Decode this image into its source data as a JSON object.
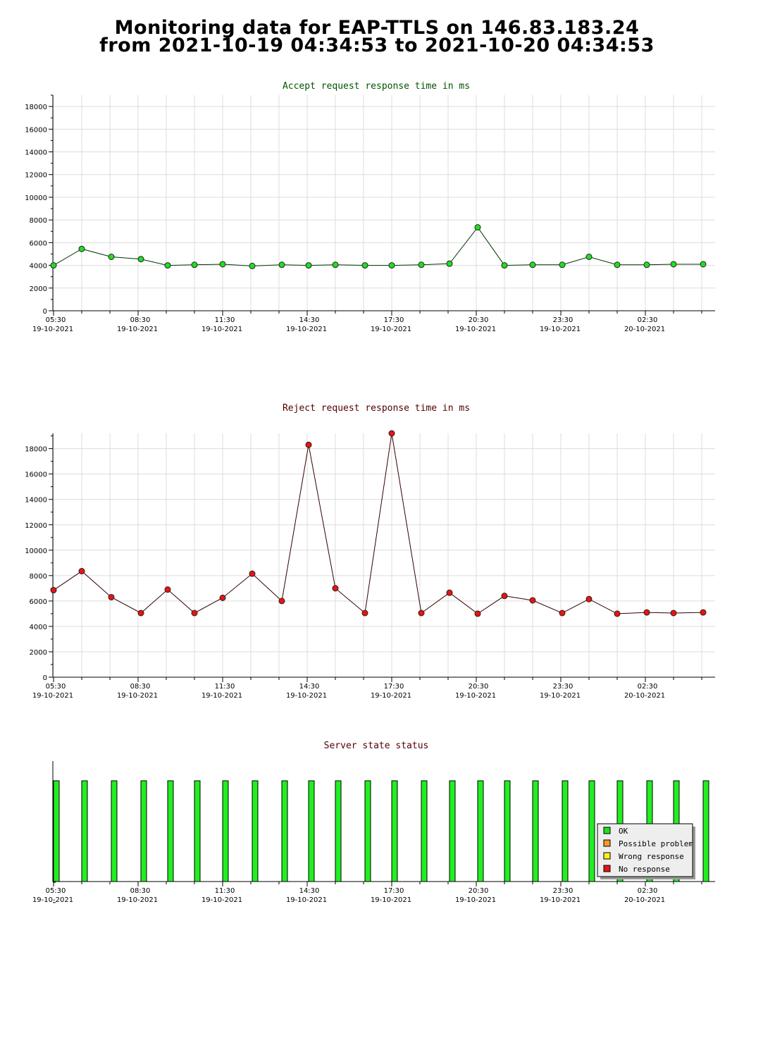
{
  "page": {
    "title_line1": "Monitoring data for EAP-TTLS on 146.83.183.24",
    "title_line2": "from 2021-10-19 04:34:53 to 2021-10-20 04:34:53"
  },
  "x_ticks": [
    {
      "time": "05:30",
      "date": "19-10-2021",
      "hour": 0
    },
    {
      "time": "08:30",
      "date": "19-10-2021",
      "hour": 3
    },
    {
      "time": "11:30",
      "date": "19-10-2021",
      "hour": 6
    },
    {
      "time": "14:30",
      "date": "19-10-2021",
      "hour": 9
    },
    {
      "time": "17:30",
      "date": "19-10-2021",
      "hour": 12
    },
    {
      "time": "20:30",
      "date": "19-10-2021",
      "hour": 15
    },
    {
      "time": "23:30",
      "date": "19-10-2021",
      "hour": 18
    },
    {
      "time": "02:30",
      "date": "20-10-2021",
      "hour": 21
    }
  ],
  "chart_data": [
    {
      "id": "accept",
      "type": "line",
      "title": "Accept request response time in ms",
      "title_color": "#005500",
      "line_color": "#003300",
      "marker_color": "#22dd22",
      "ylim": [
        0,
        19000
      ],
      "yticks": [
        0,
        2000,
        4000,
        6000,
        8000,
        10000,
        12000,
        14000,
        16000,
        18000
      ],
      "x": [
        0,
        1,
        2.05,
        3.1,
        4.05,
        5,
        6,
        7.05,
        8.1,
        9.05,
        10,
        11.05,
        12,
        13.05,
        14.05,
        15.05,
        16,
        17,
        18.05,
        19,
        20,
        21.05,
        22,
        23.05
      ],
      "values": [
        4000,
        5450,
        4750,
        4550,
        4000,
        4050,
        4100,
        3950,
        4050,
        4000,
        4050,
        4000,
        4000,
        4050,
        4150,
        7350,
        4000,
        4050,
        4050,
        4750,
        4050,
        4050,
        4100,
        4100
      ]
    },
    {
      "id": "reject",
      "type": "line",
      "title": "Reject request response time in ms",
      "title_color": "#550000",
      "line_color": "#330000",
      "marker_color": "#ee1111",
      "ylim": [
        0,
        19200
      ],
      "yticks": [
        0,
        2000,
        4000,
        6000,
        8000,
        10000,
        12000,
        14000,
        16000,
        18000
      ],
      "x": [
        0,
        1,
        2.05,
        3.1,
        4.05,
        5,
        6,
        7.05,
        8.1,
        9.05,
        10,
        11.05,
        12,
        13.05,
        14.05,
        15.05,
        16,
        17,
        18.05,
        19,
        20,
        21.05,
        22,
        23.05
      ],
      "values": [
        6850,
        8350,
        6300,
        5050,
        6900,
        5050,
        6250,
        8150,
        6000,
        18300,
        7000,
        5050,
        19200,
        5050,
        6650,
        5000,
        6400,
        6050,
        5050,
        6150,
        5000,
        5100,
        5050,
        5100
      ]
    },
    {
      "id": "status",
      "type": "bar",
      "title": "Server state status",
      "title_color": "#550000",
      "bar_color": "#22ee22",
      "x": [
        0,
        1,
        2.05,
        3.1,
        4.05,
        5,
        6,
        7.05,
        8.1,
        9.05,
        10,
        11.05,
        12,
        13.05,
        14.05,
        15.05,
        16,
        17,
        18.05,
        19,
        20,
        21.05,
        22,
        23.05
      ],
      "values": [
        "OK",
        "OK",
        "OK",
        "OK",
        "OK",
        "OK",
        "OK",
        "OK",
        "OK",
        "OK",
        "OK",
        "OK",
        "OK",
        "OK",
        "OK",
        "OK",
        "OK",
        "OK",
        "OK",
        "OK",
        "OK",
        "OK",
        "OK",
        "OK"
      ],
      "legend": [
        {
          "label": "OK",
          "color": "#22dd22"
        },
        {
          "label": "Possible problem",
          "color": "#ff9922"
        },
        {
          "label": "Wrong response",
          "color": "#ffee22"
        },
        {
          "label": "No response",
          "color": "#ee1111"
        }
      ],
      "legend_position": "bottom-right"
    }
  ]
}
